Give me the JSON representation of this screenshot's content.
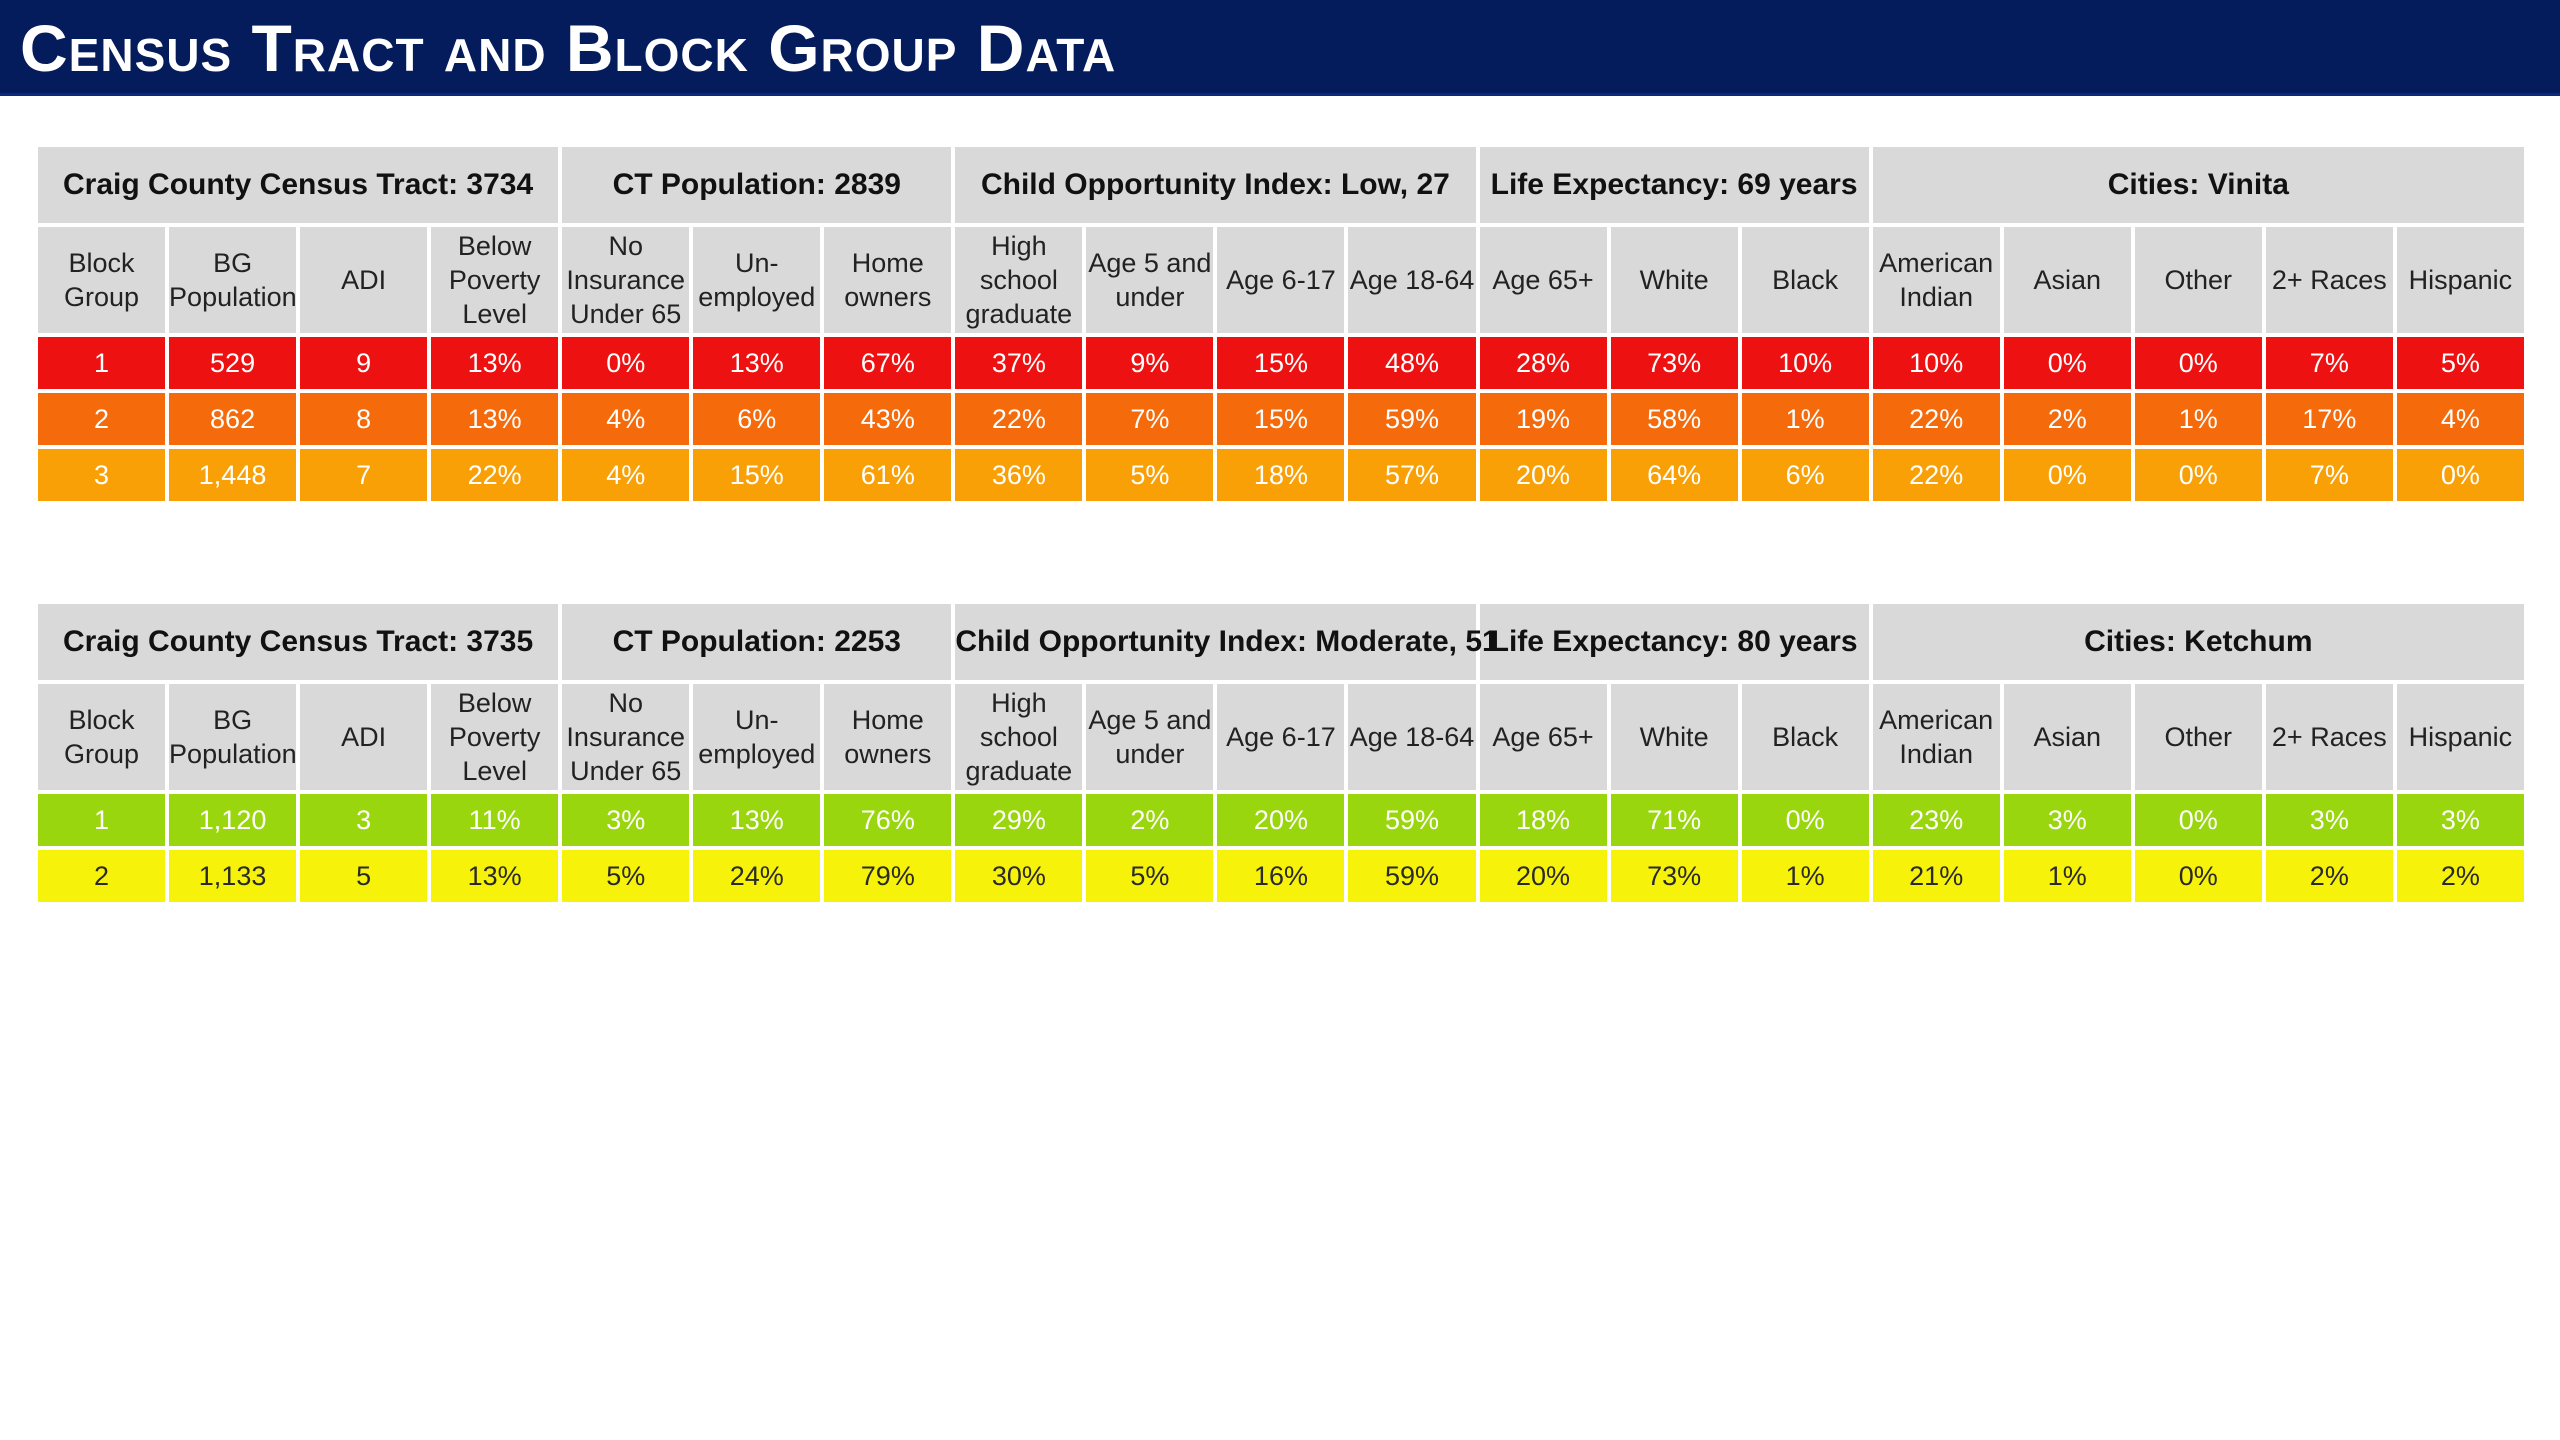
{
  "page": {
    "title": "Census Tract and Block Group Data"
  },
  "columns": [
    "Block\nGroup",
    "BG\nPopulation",
    "ADI",
    "Below\nPoverty\nLevel",
    "No\nInsurance\nUnder 65",
    "Un-\nemployed",
    "Home\nowners",
    "High school\ngraduate",
    "Age 5 and\nunder",
    "Age 6-17",
    "Age 18-64",
    "Age 65+",
    "White",
    "Black",
    "American\nIndian",
    "Asian",
    "Other",
    "2+ Races",
    "Hispanic"
  ],
  "tracts": [
    {
      "summary": [
        "Craig County Census Tract: 3734",
        "CT Population: 2839",
        "Child Opportunity Index: Low, 27",
        "Life Expectancy: 69 years",
        "Cities: Vinita"
      ],
      "rows": [
        {
          "color": "#ee1111",
          "cells": [
            "1",
            "529",
            "9",
            "13%",
            "0%",
            "13%",
            "67%",
            "37%",
            "9%",
            "15%",
            "48%",
            "28%",
            "73%",
            "10%",
            "10%",
            "0%",
            "0%",
            "7%",
            "5%"
          ]
        },
        {
          "color": "#f56a0a",
          "cells": [
            "2",
            "862",
            "8",
            "13%",
            "4%",
            "6%",
            "43%",
            "22%",
            "7%",
            "15%",
            "59%",
            "19%",
            "58%",
            "1%",
            "22%",
            "2%",
            "1%",
            "17%",
            "4%"
          ]
        },
        {
          "color": "#f9a007",
          "cells": [
            "3",
            "1,448",
            "7",
            "22%",
            "4%",
            "15%",
            "61%",
            "36%",
            "5%",
            "18%",
            "57%",
            "20%",
            "64%",
            "6%",
            "22%",
            "0%",
            "0%",
            "7%",
            "0%"
          ]
        }
      ]
    },
    {
      "summary": [
        "Craig County Census Tract: 3735",
        "CT Population: 2253",
        "Child Opportunity Index: Moderate, 51",
        "Life Expectancy: 80 years",
        "Cities: Ketchum"
      ],
      "rows": [
        {
          "color": "#99d60d",
          "cells": [
            "1",
            "1,120",
            "3",
            "11%",
            "3%",
            "13%",
            "76%",
            "29%",
            "2%",
            "20%",
            "59%",
            "18%",
            "71%",
            "0%",
            "23%",
            "3%",
            "0%",
            "3%",
            "3%"
          ]
        },
        {
          "color": "#f7f20a",
          "cells": [
            "2",
            "1,133",
            "5",
            "13%",
            "5%",
            "24%",
            "79%",
            "30%",
            "5%",
            "16%",
            "59%",
            "20%",
            "73%",
            "1%",
            "21%",
            "1%",
            "0%",
            "2%",
            "2%"
          ]
        }
      ]
    }
  ]
}
